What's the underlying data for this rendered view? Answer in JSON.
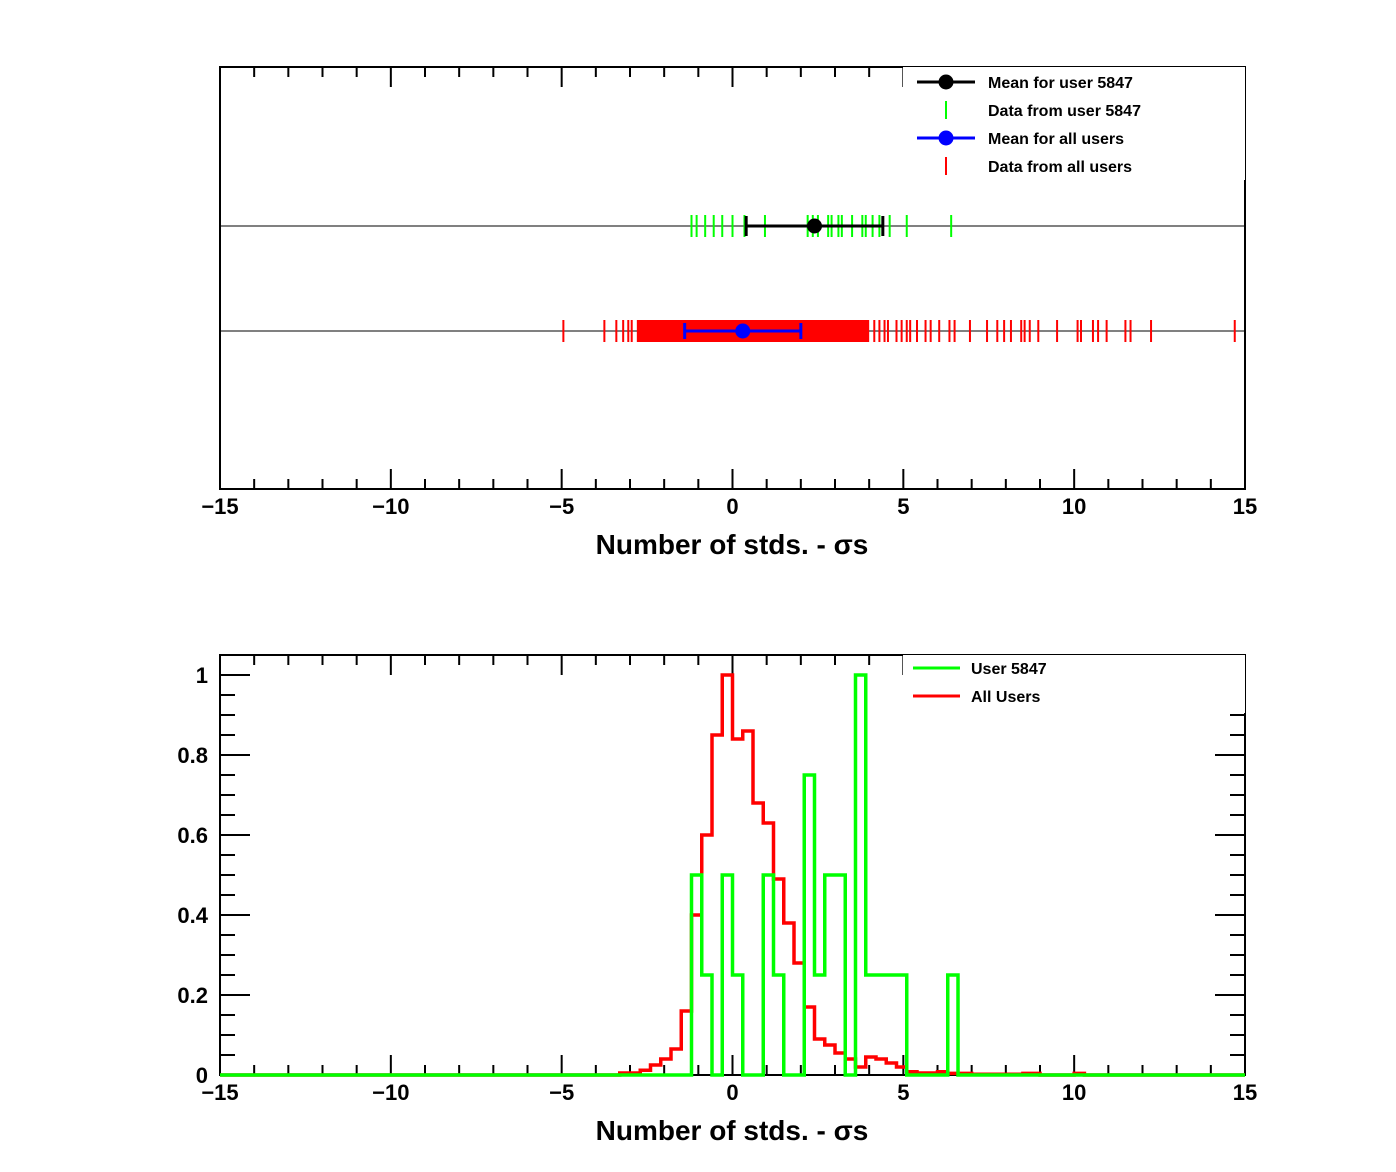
{
  "chart_data": [
    {
      "type": "scatter",
      "subtype": "tick-strip",
      "xlabel": "Number of stds. -   σs",
      "xlim": [
        -15,
        15
      ],
      "xticks": [
        -15,
        -10,
        -5,
        0,
        5,
        10,
        15
      ],
      "grid": false,
      "legend_position": "top-right",
      "legend": [
        {
          "label": "Mean for user 5847",
          "marker": "circle-line",
          "color": "#000000"
        },
        {
          "label": "Data from user 5847",
          "marker": "tick",
          "color": "#00ff00"
        },
        {
          "label": "Mean for all users",
          "marker": "circle-line",
          "color": "#0000ff"
        },
        {
          "label": "Data from all users",
          "marker": "tick",
          "color": "#ff0000"
        }
      ],
      "user": {
        "color": "#00ff00",
        "mean": 2.4,
        "err_low": 0.4,
        "err_high": 4.4,
        "mean_color": "#000000",
        "points": [
          -1.2,
          -1.05,
          -0.8,
          -0.55,
          -0.3,
          0.0,
          0.35,
          0.95,
          2.2,
          2.35,
          2.5,
          2.8,
          2.9,
          3.1,
          3.2,
          3.5,
          3.8,
          3.9,
          4.1,
          4.3,
          4.6,
          5.1,
          6.4
        ]
      },
      "all": {
        "color": "#ff0000",
        "mean": 0.3,
        "err_low": -1.4,
        "err_high": 2.0,
        "mean_color": "#0000ff",
        "band": [
          -2.8,
          4.0
        ],
        "points": [
          -4.95,
          -3.75,
          -3.4,
          -3.2,
          -3.05,
          -2.95,
          4.15,
          4.3,
          4.45,
          4.55,
          4.8,
          4.95,
          5.1,
          5.2,
          5.4,
          5.65,
          5.8,
          6.05,
          6.35,
          6.5,
          6.95,
          7.45,
          7.75,
          7.95,
          8.15,
          8.45,
          8.55,
          8.7,
          8.95,
          9.5,
          10.1,
          10.2,
          10.55,
          10.7,
          10.95,
          11.5,
          11.65,
          12.25,
          14.7
        ]
      }
    },
    {
      "type": "line",
      "subtype": "step-histogram",
      "xlabel": "Number of stds. -   σs",
      "xlim": [
        -15,
        15
      ],
      "ylim": [
        0,
        1.05
      ],
      "xticks": [
        -15,
        -10,
        -5,
        0,
        5,
        10,
        15
      ],
      "yticks": [
        0,
        0.2,
        0.4,
        0.6,
        0.8,
        1
      ],
      "ytick_labels": [
        "0",
        "0.2",
        "0.4",
        "0.6",
        "0.8",
        "1"
      ],
      "grid": false,
      "legend_position": "top-right",
      "legend": [
        {
          "label": "User 5847",
          "color": "#00ff00"
        },
        {
          "label": "All Users",
          "color": "#ff0000"
        }
      ],
      "series": [
        {
          "name": "All Users",
          "color": "#ff0000",
          "steps": [
            [
              -15,
              0
            ],
            [
              -3.3,
              0.005
            ],
            [
              -2.7,
              0.012
            ],
            [
              -2.4,
              0.025
            ],
            [
              -2.1,
              0.04
            ],
            [
              -1.8,
              0.065
            ],
            [
              -1.5,
              0.16
            ],
            [
              -1.2,
              0.4
            ],
            [
              -0.9,
              0.6
            ],
            [
              -0.6,
              0.85
            ],
            [
              -0.3,
              1.0
            ],
            [
              0.0,
              0.84
            ],
            [
              0.3,
              0.86
            ],
            [
              0.6,
              0.68
            ],
            [
              0.9,
              0.63
            ],
            [
              1.2,
              0.49
            ],
            [
              1.5,
              0.38
            ],
            [
              1.8,
              0.28
            ],
            [
              2.1,
              0.17
            ],
            [
              2.4,
              0.09
            ],
            [
              2.7,
              0.075
            ],
            [
              3.0,
              0.055
            ],
            [
              3.3,
              0.04
            ],
            [
              3.6,
              0.02
            ],
            [
              3.9,
              0.045
            ],
            [
              4.2,
              0.04
            ],
            [
              4.5,
              0.03
            ],
            [
              4.8,
              0.02
            ],
            [
              5.1,
              0.008
            ],
            [
              5.4,
              0.005
            ],
            [
              6.0,
              0.008
            ],
            [
              6.3,
              0.004
            ],
            [
              7.0,
              0.002
            ],
            [
              8.5,
              0.004
            ],
            [
              9.0,
              0.0
            ],
            [
              10.0,
              0.004
            ],
            [
              10.3,
              0.0
            ],
            [
              15,
              0
            ]
          ]
        },
        {
          "name": "User 5847",
          "color": "#00ff00",
          "steps": [
            [
              -15,
              0
            ],
            [
              -1.2,
              0.5
            ],
            [
              -0.9,
              0.25
            ],
            [
              -0.6,
              0
            ],
            [
              -0.3,
              0.5
            ],
            [
              0.0,
              0.25
            ],
            [
              0.3,
              0
            ],
            [
              0.9,
              0.5
            ],
            [
              1.2,
              0.25
            ],
            [
              1.5,
              0
            ],
            [
              2.1,
              0.75
            ],
            [
              2.4,
              0.25
            ],
            [
              2.7,
              0.5
            ],
            [
              3.3,
              0
            ],
            [
              3.6,
              1.0
            ],
            [
              3.9,
              0.25
            ],
            [
              5.1,
              0
            ],
            [
              6.3,
              0.25
            ],
            [
              6.6,
              0
            ],
            [
              15,
              0
            ]
          ]
        }
      ]
    }
  ]
}
